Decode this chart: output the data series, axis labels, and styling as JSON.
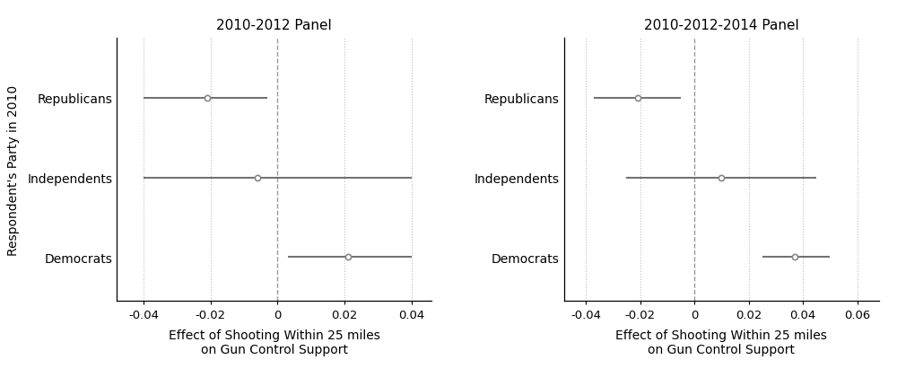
{
  "panel1": {
    "title": "2010-2012 Panel",
    "categories": [
      "Republicans",
      "Independents",
      "Democrats"
    ],
    "estimates": [
      -0.021,
      -0.006,
      0.021
    ],
    "ci_low": [
      -0.04,
      -0.04,
      0.003
    ],
    "ci_high": [
      -0.003,
      0.04,
      0.04
    ],
    "xlim": [
      -0.048,
      0.046
    ],
    "xticks": [
      -0.04,
      -0.02,
      0,
      0.02,
      0.04
    ],
    "xtick_labels": [
      "-0.04",
      "-0.02",
      "0",
      "0.02",
      "0.04"
    ]
  },
  "panel2": {
    "title": "2010-2012-2014 Panel",
    "categories": [
      "Republicans",
      "Independents",
      "Democrats"
    ],
    "estimates": [
      -0.021,
      0.01,
      0.037
    ],
    "ci_low": [
      -0.037,
      -0.025,
      0.025
    ],
    "ci_high": [
      -0.005,
      0.045,
      0.05
    ],
    "xlim": [
      -0.048,
      0.068
    ],
    "xticks": [
      -0.04,
      -0.02,
      0,
      0.02,
      0.04,
      0.06
    ],
    "xtick_labels": [
      "-0.04",
      "-0.02",
      "0",
      "0.02",
      "0.04",
      "0.06"
    ]
  },
  "ylabel": "Respondent's Party in 2010",
  "xlabel": "Effect of Shooting Within 25 miles\non Gun Control Support",
  "point_color": "#888888",
  "line_color": "#555555",
  "dashed_color": "#999999",
  "grid_color": "#bbbbbb",
  "bg_color": "#ffffff",
  "title_fontsize": 11,
  "label_fontsize": 10,
  "tick_fontsize": 9.5,
  "ylabel_fontsize": 10
}
